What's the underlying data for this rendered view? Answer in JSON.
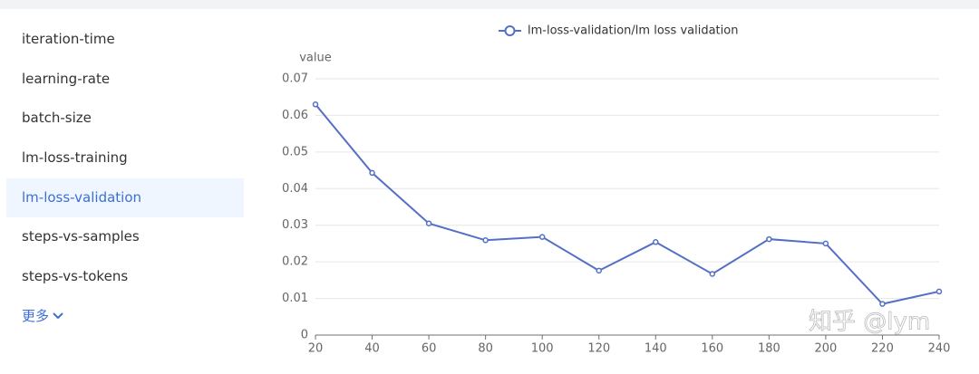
{
  "sidebar": {
    "items": [
      "iteration-time",
      "learning-rate",
      "batch-size",
      "lm-loss-training",
      "lm-loss-validation",
      "steps-vs-samples",
      "steps-vs-tokens"
    ],
    "selected": 4,
    "more": "更多"
  },
  "chart_data": {
    "type": "line",
    "y_label": "value",
    "x": [
      20,
      40,
      60,
      80,
      100,
      120,
      140,
      160,
      180,
      200,
      220,
      240
    ],
    "series": [
      {
        "name": "lm-loss-validation/lm loss validation",
        "color": "#5470c6",
        "values": [
          0.063,
          0.0443,
          0.0305,
          0.0259,
          0.0268,
          0.0176,
          0.0254,
          0.0167,
          0.0262,
          0.025,
          0.0085,
          0.0119
        ]
      }
    ],
    "xlim": [
      20,
      240
    ],
    "xticks": [
      20,
      40,
      60,
      80,
      100,
      120,
      140,
      160,
      180,
      200,
      220,
      240
    ],
    "ylim": [
      0,
      0.07
    ],
    "yticks": [
      0,
      0.01,
      0.02,
      0.03,
      0.04,
      0.05,
      0.06,
      0.07
    ],
    "grid": true
  },
  "watermark": "知乎 @lym"
}
